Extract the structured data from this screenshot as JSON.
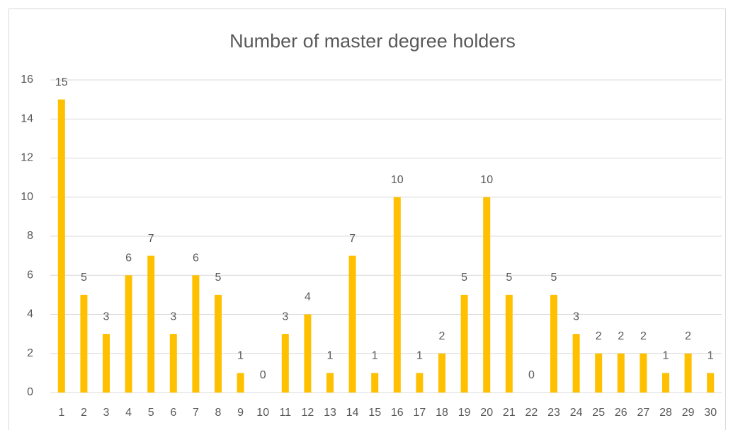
{
  "chart_data": {
    "type": "bar",
    "title": "Number of master degree holders",
    "categories": [
      1,
      2,
      3,
      4,
      5,
      6,
      7,
      8,
      9,
      10,
      11,
      12,
      13,
      14,
      15,
      16,
      17,
      18,
      19,
      20,
      21,
      22,
      23,
      24,
      25,
      26,
      27,
      28,
      29,
      30
    ],
    "values": [
      15,
      5,
      3,
      6,
      7,
      3,
      6,
      5,
      1,
      0,
      3,
      4,
      1,
      7,
      1,
      10,
      1,
      2,
      5,
      10,
      5,
      0,
      5,
      3,
      2,
      2,
      2,
      1,
      2,
      1
    ],
    "color": "#ffc000",
    "ylim": [
      0,
      16
    ],
    "yticks": [
      0,
      2,
      4,
      6,
      8,
      10,
      12,
      14,
      16
    ],
    "grid": true
  }
}
